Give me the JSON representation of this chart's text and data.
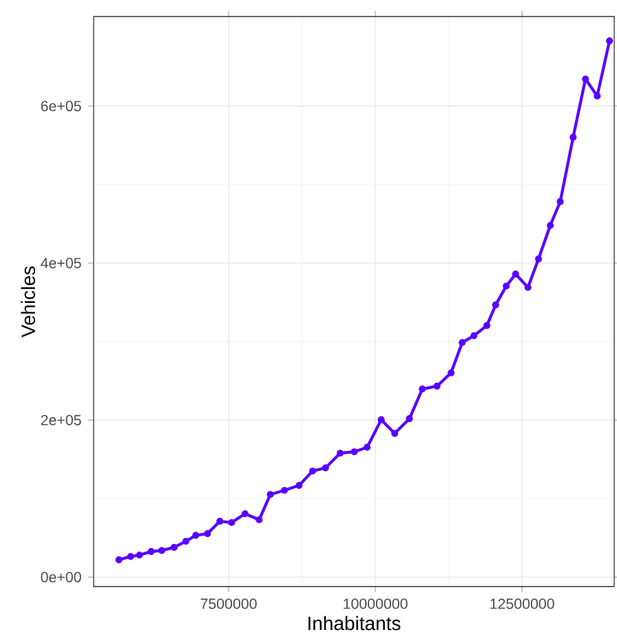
{
  "chart_data": {
    "type": "line",
    "xlabel": "Inhabitants",
    "ylabel": "Vehicles",
    "x": [
      5630000,
      5830000,
      5980000,
      6180000,
      6360000,
      6570000,
      6770000,
      6940000,
      7140000,
      7350000,
      7550000,
      7780000,
      8020000,
      8210000,
      8450000,
      8700000,
      8930000,
      9150000,
      9400000,
      9640000,
      9860000,
      10100000,
      10330000,
      10580000,
      10800000,
      11050000,
      11290000,
      11480000,
      11680000,
      11900000,
      12050000,
      12230000,
      12390000,
      12600000,
      12780000,
      12980000,
      13150000,
      13370000,
      13580000,
      13780000,
      13990000
    ],
    "series": [
      {
        "color": "#5a00ff",
        "values": [
          22100,
          26300,
          28100,
          32600,
          33900,
          37900,
          45600,
          53200,
          55400,
          71200,
          69500,
          80700,
          73000,
          105300,
          110500,
          116800,
          135100,
          139100,
          157900,
          159600,
          165400,
          200500,
          183000,
          201800,
          239600,
          243200,
          260200,
          298800,
          307500,
          320400,
          346700,
          370700,
          386000,
          369000,
          405300,
          447900,
          478200,
          560200,
          634400,
          612800,
          683000
        ]
      }
    ],
    "xlim": [
      5200000,
      14070000
    ],
    "ylim": [
      -12000,
      714000
    ],
    "xticks": [
      7500000,
      10000000,
      12500000
    ],
    "yticks": [
      {
        "value": 0,
        "label": "0e+00"
      },
      {
        "value": 200000,
        "label": "2e+05"
      },
      {
        "value": 400000,
        "label": "4e+05"
      },
      {
        "value": 600000,
        "label": "6e+05"
      }
    ],
    "grid": true,
    "legend": false,
    "marker": "circle",
    "line_style": "solid"
  }
}
